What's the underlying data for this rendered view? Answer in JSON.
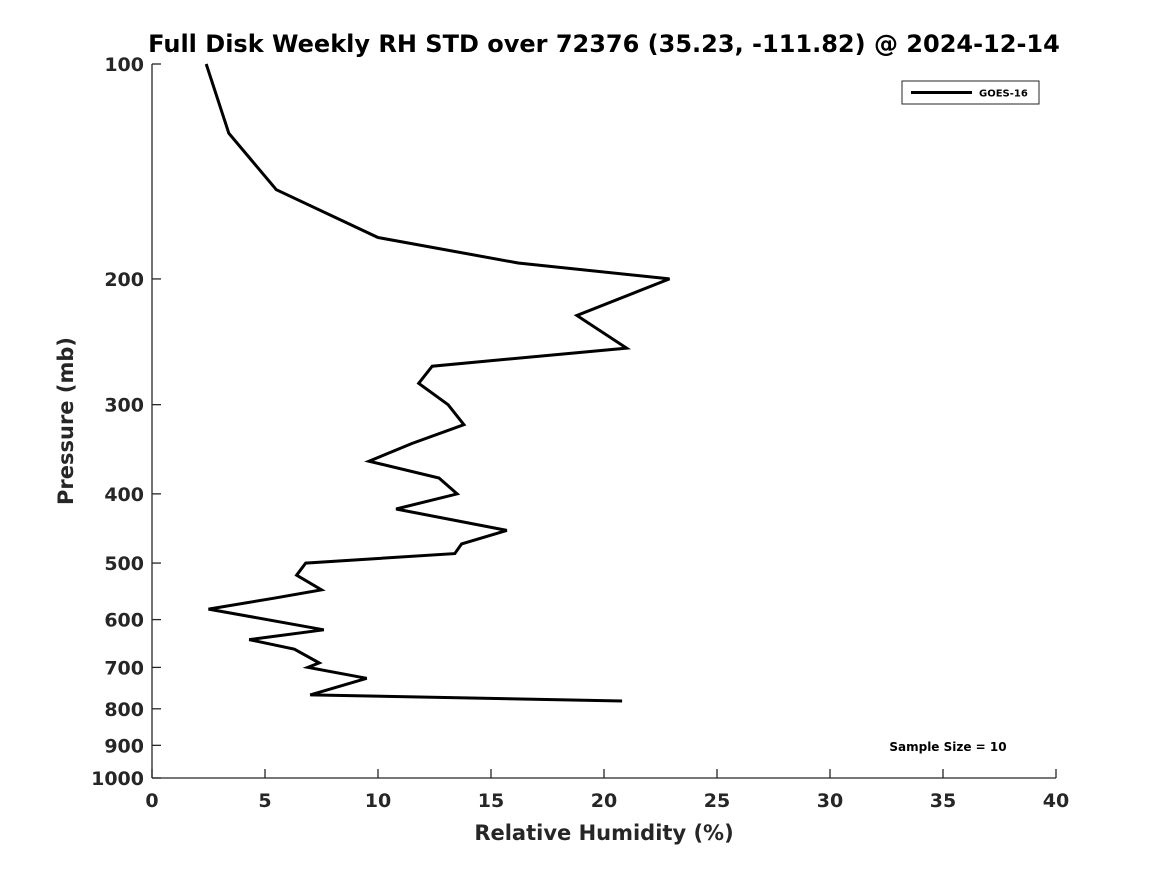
{
  "chart_data": {
    "type": "line",
    "title": "Full Disk Weekly RH STD over 72376 (35.23, -111.82) @ 2024-12-14",
    "xlabel": "Relative Humidity (%)",
    "ylabel": "Pressure (mb)",
    "xlim": [
      0,
      40
    ],
    "ylim": [
      1000,
      100
    ],
    "yscale": "log",
    "y_reversed": true,
    "grid": false,
    "legend_position": "top-right",
    "x_ticks": [
      0,
      5,
      10,
      15,
      20,
      25,
      30,
      35,
      40
    ],
    "y_ticks": [
      100,
      200,
      300,
      400,
      500,
      600,
      700,
      800,
      900,
      1000
    ],
    "series": [
      {
        "name": "GOES-16",
        "color": "#000000",
        "points": [
          {
            "x": 2.4,
            "y": 100
          },
          {
            "x": 3.4,
            "y": 125
          },
          {
            "x": 5.5,
            "y": 150
          },
          {
            "x": 10.0,
            "y": 175
          },
          {
            "x": 16.2,
            "y": 190
          },
          {
            "x": 22.9,
            "y": 200
          },
          {
            "x": 18.8,
            "y": 225
          },
          {
            "x": 21.0,
            "y": 250
          },
          {
            "x": 12.4,
            "y": 265
          },
          {
            "x": 11.8,
            "y": 280
          },
          {
            "x": 13.1,
            "y": 300
          },
          {
            "x": 13.8,
            "y": 320
          },
          {
            "x": 11.5,
            "y": 340
          },
          {
            "x": 9.6,
            "y": 360
          },
          {
            "x": 12.7,
            "y": 380
          },
          {
            "x": 13.5,
            "y": 400
          },
          {
            "x": 10.8,
            "y": 420
          },
          {
            "x": 15.7,
            "y": 450
          },
          {
            "x": 13.7,
            "y": 470
          },
          {
            "x": 13.4,
            "y": 485
          },
          {
            "x": 6.8,
            "y": 500
          },
          {
            "x": 6.4,
            "y": 520
          },
          {
            "x": 7.5,
            "y": 545
          },
          {
            "x": 5.4,
            "y": 560
          },
          {
            "x": 2.5,
            "y": 580
          },
          {
            "x": 7.6,
            "y": 620
          },
          {
            "x": 4.3,
            "y": 640
          },
          {
            "x": 6.3,
            "y": 660
          },
          {
            "x": 7.4,
            "y": 690
          },
          {
            "x": 6.9,
            "y": 700
          },
          {
            "x": 9.5,
            "y": 725
          },
          {
            "x": 7.0,
            "y": 765
          },
          {
            "x": 20.8,
            "y": 780
          }
        ]
      }
    ],
    "annotation": "Sample Size = 10"
  }
}
